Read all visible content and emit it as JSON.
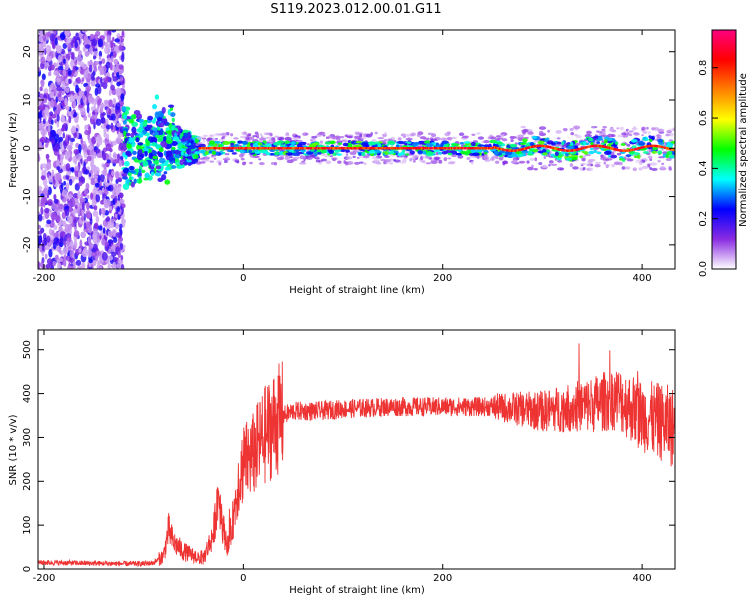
{
  "title": "S119.2023.012.00.01.G11",
  "chart_data": [
    {
      "type": "heatmap",
      "xlabel": "Height of straight line (km)",
      "ylabel": "Frequency (Hz)",
      "xlim": [
        -206,
        433
      ],
      "ylim": [
        -25,
        24.5
      ],
      "x_ticks": [
        -200,
        0,
        200,
        400
      ],
      "y_ticks": [
        -20,
        -10,
        0,
        10,
        20
      ],
      "colorbar": {
        "label": "Normalized spectral amplitude",
        "ticks": [
          0.0,
          0.2,
          0.4,
          0.6,
          0.8
        ],
        "range": [
          0,
          0.95
        ],
        "colors": [
          "#ffffff",
          "#8a2be2",
          "#0000ff",
          "#00ffff",
          "#00ff00",
          "#ffff00",
          "#ff8000",
          "#ff0000",
          "#ff0080"
        ]
      },
      "features": {
        "noise_region_x": [
          -206,
          -120
        ],
        "transition_region_x": [
          -120,
          -45
        ],
        "stable_line_x": [
          -45,
          433
        ],
        "stable_line_freq_hz": 0
      }
    },
    {
      "type": "line",
      "xlabel": "Height of straight line (km)",
      "ylabel": "SNR (10 * v/v)",
      "xlim": [
        -206,
        433
      ],
      "ylim": [
        0,
        545
      ],
      "x_ticks": [
        -200,
        0,
        200,
        400
      ],
      "y_ticks": [
        0,
        100,
        200,
        300,
        400,
        500
      ],
      "color": "#ee3333",
      "x": [
        -206,
        -180,
        -150,
        -120,
        -100,
        -90,
        -80,
        -75,
        -70,
        -60,
        -50,
        -40,
        -30,
        -25,
        -20,
        -15,
        -10,
        -5,
        0,
        10,
        20,
        30,
        40,
        50,
        75,
        100,
        150,
        200,
        250,
        300,
        350,
        375,
        400,
        425,
        433
      ],
      "y": [
        15,
        14,
        13,
        12,
        12,
        14,
        30,
        90,
        60,
        40,
        30,
        25,
        80,
        180,
        90,
        50,
        120,
        200,
        240,
        260,
        300,
        330,
        350,
        360,
        360,
        365,
        370,
        370,
        370,
        360,
        375,
        390,
        350,
        330,
        320
      ]
    }
  ]
}
